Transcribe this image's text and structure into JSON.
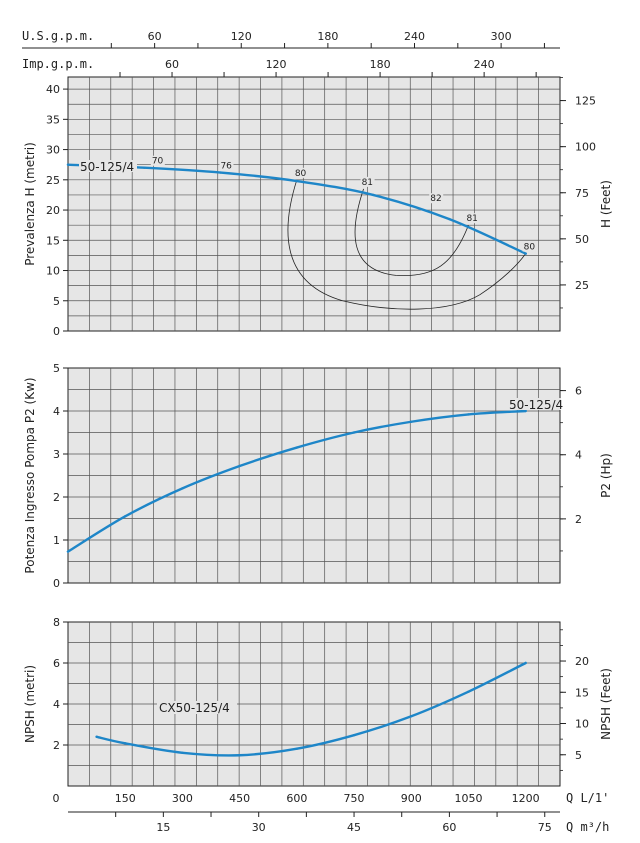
{
  "chart_data": [
    {
      "type": "line",
      "panel": "head",
      "series": [
        {
          "name": "50-125/4",
          "x": [
            0,
            200,
            400,
            600,
            800,
            1000,
            1200
          ],
          "values": [
            27.5,
            27.0,
            26.2,
            24.8,
            22.5,
            18.5,
            12.8
          ]
        }
      ],
      "efficiency_marks": [
        {
          "label": "70",
          "x": 225,
          "y": 27.0
        },
        {
          "label": "76",
          "x": 405,
          "y": 26.2
        },
        {
          "label": "80",
          "x": 600,
          "y": 25.0
        },
        {
          "label": "81",
          "x": 775,
          "y": 23.5
        },
        {
          "label": "82",
          "x": 955,
          "y": 20.8
        },
        {
          "label": "81",
          "x": 1050,
          "y": 17.5
        },
        {
          "label": "80",
          "x": 1200,
          "y": 12.8
        }
      ],
      "ylabel": "Prevalenza H (metri)",
      "ylabel_right": "H (Feet)",
      "ylim": [
        0,
        42
      ],
      "yticks": [
        "0",
        "5",
        "10",
        "15",
        "20",
        "25",
        "30",
        "35",
        "40"
      ],
      "yticks_right": [
        "25",
        "50",
        "75",
        "100",
        "125"
      ],
      "grid": true
    },
    {
      "type": "line",
      "panel": "power",
      "series": [
        {
          "name": "50-125/4",
          "x": [
            0,
            150,
            300,
            450,
            600,
            750,
            900,
            1050,
            1200
          ],
          "values": [
            0.73,
            1.55,
            2.2,
            2.72,
            3.15,
            3.5,
            3.75,
            3.92,
            4.0
          ]
        }
      ],
      "ylabel": "Potenza Ingresso Pompa P2 (Kw)",
      "ylabel_right": "P2 (Hp)",
      "ylim": [
        0,
        5
      ],
      "yticks": [
        "0",
        "1",
        "2",
        "3",
        "4",
        "5"
      ],
      "yticks_right": [
        "2",
        "4",
        "6"
      ],
      "grid": true
    },
    {
      "type": "line",
      "panel": "npsh",
      "series": [
        {
          "name": "CX50-125/4",
          "x": [
            75,
            150,
            300,
            450,
            600,
            750,
            900,
            1050,
            1200
          ],
          "values": [
            2.4,
            2.08,
            1.62,
            1.5,
            1.82,
            2.48,
            3.4,
            4.6,
            6.0
          ]
        }
      ],
      "ylabel": "NPSH (metri)",
      "ylabel_right": "NPSH (Feet)",
      "ylim": [
        0,
        8
      ],
      "yticks": [
        "2",
        "4",
        "6",
        "8"
      ],
      "yticks_right": [
        "5",
        "10",
        "15",
        "20"
      ],
      "grid": true
    }
  ],
  "axes": {
    "usgpm_title": "U.S.g.p.m.",
    "usgpm_ticks": [
      "60",
      "120",
      "180",
      "240",
      "300"
    ],
    "impgpm_title": "Imp.g.p.m.",
    "impgpm_ticks": [
      "60",
      "120",
      "180",
      "240"
    ],
    "q_ticks": [
      "0",
      "150",
      "300",
      "450",
      "600",
      "750",
      "900",
      "1050",
      "1200"
    ],
    "q_title": "Q L/1'",
    "m3h_ticks": [
      "15",
      "30",
      "45",
      "60",
      "75"
    ],
    "m3h_title": "Q m³/h"
  },
  "colors": {
    "curve": "#1e86c8",
    "panel_bg": "#e6e6e6",
    "grid": "#555555"
  }
}
